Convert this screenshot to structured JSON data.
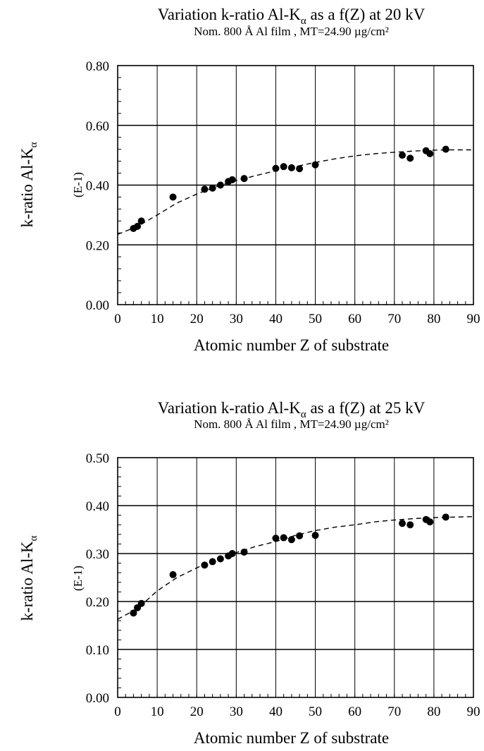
{
  "chart_data": [
    {
      "type": "scatter",
      "title_main": "Variation k-ratio Al-K",
      "title_sub_alpha": "α",
      "title_tail": " as a f(Z) at 20 kV",
      "subtitle": "Nom. 800 Å Al film , MT=24.90 µg/cm²",
      "ylabel_main": "k-ratio Al-K",
      "ylabel_sub": "α",
      "yunit": "(E-1)",
      "xlabel": "Atomic number Z of substrate",
      "xlim": [
        0,
        90
      ],
      "ylim": [
        0,
        0.8
      ],
      "xticks": [
        "0",
        "10",
        "20",
        "30",
        "40",
        "50",
        "60",
        "70",
        "80",
        "90"
      ],
      "yticks": [
        "0.00",
        "0.20",
        "0.40",
        "0.60",
        "0.80"
      ],
      "grid": true,
      "series": [
        {
          "marker": "filled-circle",
          "x": [
            4,
            5,
            6,
            14,
            22,
            24,
            26,
            28,
            29,
            32,
            40,
            42,
            44,
            46,
            50,
            72,
            74,
            78,
            79,
            83
          ],
          "y": [
            0.255,
            0.262,
            0.28,
            0.36,
            0.386,
            0.39,
            0.4,
            0.412,
            0.418,
            0.422,
            0.456,
            0.462,
            0.458,
            0.455,
            0.468,
            0.5,
            0.49,
            0.515,
            0.505,
            0.52
          ]
        }
      ],
      "fit_curve": {
        "style": "dashed",
        "x": [
          0,
          5,
          10,
          15,
          20,
          25,
          30,
          35,
          40,
          45,
          50,
          55,
          60,
          65,
          70,
          75,
          80,
          85,
          90
        ],
        "y": [
          0.235,
          0.262,
          0.3,
          0.34,
          0.37,
          0.395,
          0.415,
          0.432,
          0.448,
          0.462,
          0.476,
          0.488,
          0.498,
          0.505,
          0.51,
          0.514,
          0.517,
          0.518,
          0.518
        ]
      }
    },
    {
      "type": "scatter",
      "title_main": "Variation k-ratio Al-K",
      "title_sub_alpha": "α",
      "title_tail": " as a f(Z) at 25 kV",
      "subtitle": "Nom. 800 Å Al film , MT=24.90 µg/cm²",
      "ylabel_main": "k-ratio Al-K",
      "ylabel_sub": "α",
      "yunit": "(E-1)",
      "xlabel": "Atomic number Z of substrate",
      "xlim": [
        0,
        90
      ],
      "ylim": [
        0,
        0.5
      ],
      "xticks": [
        "0",
        "10",
        "20",
        "30",
        "40",
        "50",
        "60",
        "70",
        "80",
        "90"
      ],
      "yticks": [
        "0.00",
        "0.10",
        "0.20",
        "0.30",
        "0.40",
        "0.50"
      ],
      "grid": true,
      "series": [
        {
          "marker": "filled-circle",
          "x": [
            4,
            5,
            6,
            14,
            22,
            24,
            26,
            28,
            29,
            32,
            40,
            42,
            44,
            46,
            50,
            72,
            74,
            78,
            79,
            83
          ],
          "y": [
            0.176,
            0.187,
            0.196,
            0.256,
            0.276,
            0.283,
            0.289,
            0.295,
            0.3,
            0.303,
            0.332,
            0.333,
            0.329,
            0.337,
            0.338,
            0.363,
            0.36,
            0.371,
            0.366,
            0.376
          ]
        }
      ],
      "fit_curve": {
        "style": "dashed",
        "x": [
          0,
          5,
          10,
          15,
          20,
          25,
          30,
          35,
          40,
          45,
          50,
          55,
          60,
          65,
          70,
          75,
          80,
          85,
          90
        ],
        "y": [
          0.163,
          0.185,
          0.222,
          0.25,
          0.27,
          0.29,
          0.302,
          0.315,
          0.325,
          0.338,
          0.348,
          0.355,
          0.36,
          0.366,
          0.37,
          0.373,
          0.375,
          0.376,
          0.377
        ]
      }
    }
  ]
}
